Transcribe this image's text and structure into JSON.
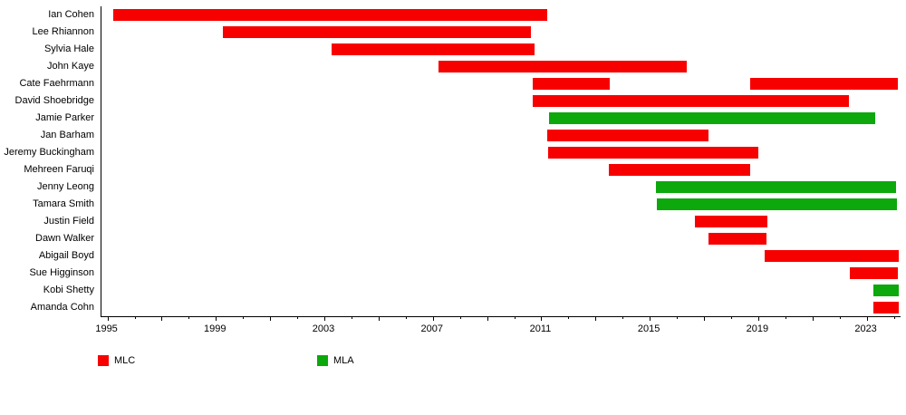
{
  "chart_data": {
    "type": "gantt",
    "title": "",
    "xlabel": "",
    "ylabel": "",
    "grid": false,
    "x_axis": {
      "min": 1994.78,
      "max": 2024.25,
      "labeled_ticks": [
        1995,
        1999,
        2003,
        2007,
        2011,
        2015,
        2019,
        2023
      ],
      "minor_tick_interval": 1
    },
    "legend": [
      {
        "label": "MLC",
        "color": "#f70000"
      },
      {
        "label": "MLA",
        "color": "#0ca80c"
      }
    ],
    "legend_position": "bottom",
    "rows": [
      {
        "name": "Ian Cohen",
        "role": "MLC",
        "bars": [
          {
            "start": 1995.22,
            "end": 2011.23
          }
        ]
      },
      {
        "name": "Lee Rhiannon",
        "role": "MLC",
        "bars": [
          {
            "start": 1999.25,
            "end": 2010.61
          }
        ]
      },
      {
        "name": "Sylvia Hale",
        "role": "MLC",
        "bars": [
          {
            "start": 2003.28,
            "end": 2010.75
          }
        ]
      },
      {
        "name": "John Kaye",
        "role": "MLC",
        "bars": [
          {
            "start": 2007.2,
            "end": 2016.38
          }
        ]
      },
      {
        "name": "Cate Faehrmann",
        "role": "MLC",
        "bars": [
          {
            "start": 2010.7,
            "end": 2013.52
          },
          {
            "start": 2018.7,
            "end": 2024.15
          }
        ]
      },
      {
        "name": "David Shoebridge",
        "role": "MLC",
        "bars": [
          {
            "start": 2010.7,
            "end": 2022.35
          }
        ]
      },
      {
        "name": "Jamie Parker",
        "role": "MLA",
        "bars": [
          {
            "start": 2011.28,
            "end": 2023.3
          }
        ]
      },
      {
        "name": "Jan Barham",
        "role": "MLC",
        "bars": [
          {
            "start": 2011.23,
            "end": 2017.18
          }
        ]
      },
      {
        "name": "Jeremy Buckingham",
        "role": "MLC",
        "bars": [
          {
            "start": 2011.25,
            "end": 2019.01
          }
        ]
      },
      {
        "name": "Mehreen Faruqi",
        "role": "MLC",
        "bars": [
          {
            "start": 2013.48,
            "end": 2018.7
          }
        ]
      },
      {
        "name": "Jenny Leong",
        "role": "MLA",
        "bars": [
          {
            "start": 2015.24,
            "end": 2024.1
          }
        ]
      },
      {
        "name": "Tamara Smith",
        "role": "MLA",
        "bars": [
          {
            "start": 2015.25,
            "end": 2024.1
          }
        ]
      },
      {
        "name": "Justin Field",
        "role": "MLC",
        "bars": [
          {
            "start": 2016.68,
            "end": 2019.35
          }
        ]
      },
      {
        "name": "Dawn Walker",
        "role": "MLC",
        "bars": [
          {
            "start": 2017.18,
            "end": 2019.3
          }
        ]
      },
      {
        "name": "Abigail Boyd",
        "role": "MLC",
        "bars": [
          {
            "start": 2019.24,
            "end": 2024.18
          }
        ]
      },
      {
        "name": "Sue Higginson",
        "role": "MLC",
        "bars": [
          {
            "start": 2022.37,
            "end": 2024.15
          }
        ]
      },
      {
        "name": "Kobi Shetty",
        "role": "MLA",
        "bars": [
          {
            "start": 2023.25,
            "end": 2024.18
          }
        ]
      },
      {
        "name": "Amanda Cohn",
        "role": "MLC",
        "bars": [
          {
            "start": 2023.25,
            "end": 2024.18
          }
        ]
      }
    ]
  },
  "colors": {
    "mlc": "#f70000",
    "mla": "#0ca80c",
    "axis": "#000000",
    "text": "#000000",
    "background": "#ffffff"
  },
  "layout_hints": {
    "row_count": 18,
    "bar_role_colors": {
      "MLC": "#f70000",
      "MLA": "#0ca80c"
    }
  }
}
